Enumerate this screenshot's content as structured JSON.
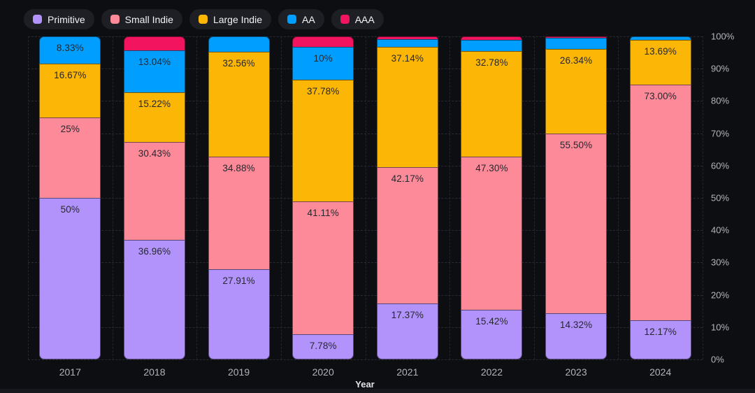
{
  "legend": {
    "items": [
      {
        "label": "Primitive",
        "color": "#b293fb"
      },
      {
        "label": "Small Indie",
        "color": "#fc8a99"
      },
      {
        "label": "Large Indie",
        "color": "#fcb605"
      },
      {
        "label": "AA",
        "color": "#009fff"
      },
      {
        "label": "AAA",
        "color": "#f2145e"
      }
    ]
  },
  "chart_data": {
    "type": "bar",
    "variant": "stacked-100-percent",
    "title": "",
    "xlabel": "Year",
    "ylabel": "",
    "ylim": [
      0,
      100
    ],
    "grid": "dashed horizontal every 10% and dashed vertical at category boundaries",
    "legend_position": "top-left",
    "categories": [
      "2017",
      "2018",
      "2019",
      "2020",
      "2021",
      "2022",
      "2023",
      "2024"
    ],
    "y_ticks": [
      "0%",
      "10%",
      "20%",
      "30%",
      "40%",
      "50%",
      "60%",
      "70%",
      "80%",
      "90%",
      "100%"
    ],
    "stack_order_bottom_to_top": [
      "Primitive",
      "Small Indie",
      "Large Indie",
      "AA",
      "AAA"
    ],
    "series": [
      {
        "name": "Primitive",
        "color": "#b293fb",
        "values": [
          50,
          36.96,
          27.91,
          7.78,
          17.37,
          15.42,
          14.32,
          12.17
        ],
        "labels": [
          "50%",
          "36.96%",
          "27.91%",
          "7.78%",
          "17.37%",
          "15.42%",
          "14.32%",
          "12.17%"
        ]
      },
      {
        "name": "Small Indie",
        "color": "#fc8a99",
        "values": [
          25,
          30.43,
          34.88,
          41.11,
          42.17,
          47.3,
          55.5,
          73.0
        ],
        "labels": [
          "25%",
          "30.43%",
          "34.88%",
          "41.11%",
          "42.17%",
          "47.30%",
          "55.50%",
          "73.00%"
        ]
      },
      {
        "name": "Large Indie",
        "color": "#fcb605",
        "values": [
          16.67,
          15.22,
          32.56,
          37.78,
          37.14,
          32.78,
          26.34,
          13.69
        ],
        "labels": [
          "16.67%",
          "15.22%",
          "32.56%",
          "37.78%",
          "37.14%",
          "32.78%",
          "26.34%",
          "13.69%"
        ]
      },
      {
        "name": "AA",
        "color": "#009fff",
        "values": [
          8.33,
          13.04,
          4.65,
          10,
          2.41,
          3.37,
          3.33,
          1.14
        ],
        "labels": [
          "8.33%",
          "13.04%",
          "",
          "10%",
          "",
          "",
          "",
          ""
        ]
      },
      {
        "name": "AAA",
        "color": "#f2145e",
        "values": [
          0,
          4.35,
          0,
          3.33,
          0.91,
          1.13,
          0.51,
          0
        ],
        "labels": [
          "",
          "",
          "",
          "",
          "",
          "",
          "",
          ""
        ]
      }
    ]
  }
}
